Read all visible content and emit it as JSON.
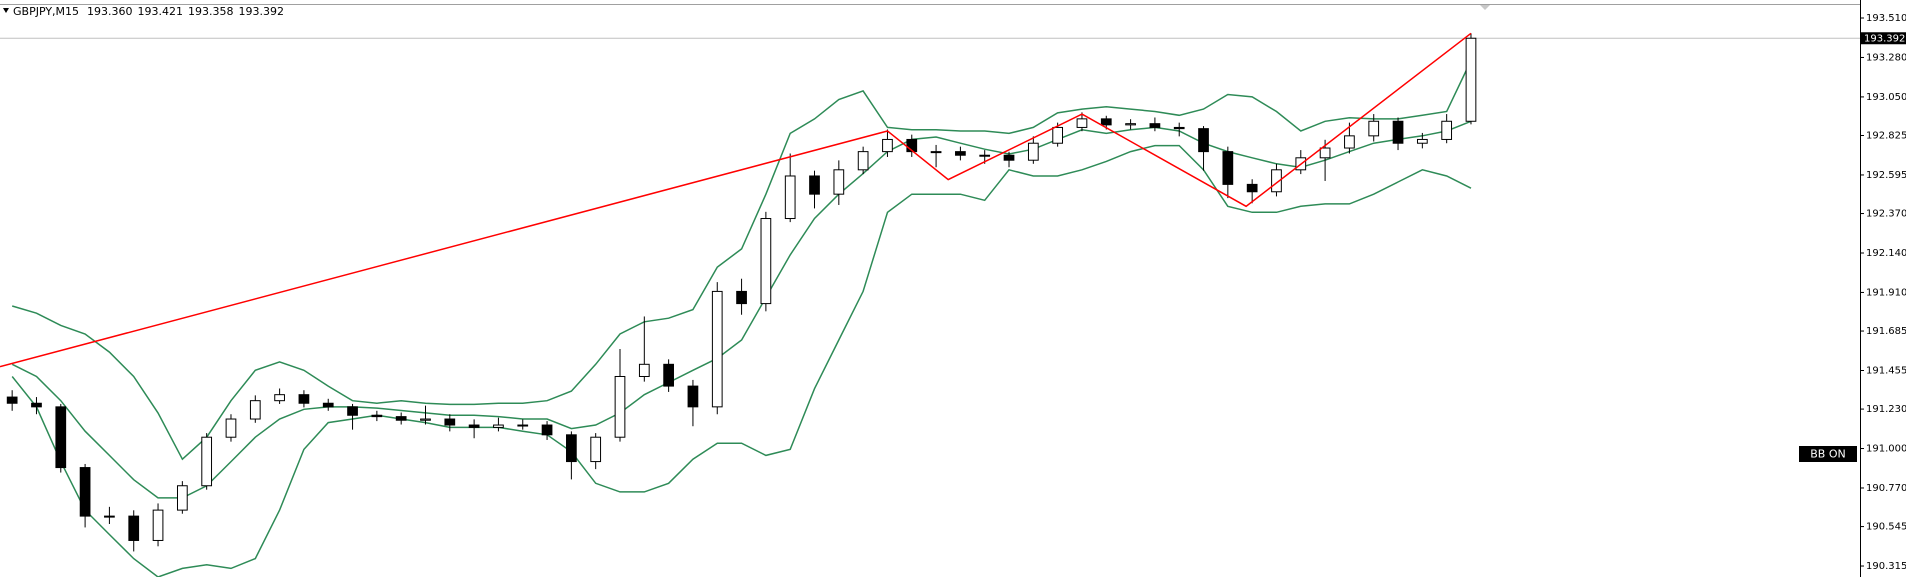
{
  "header": {
    "symbol": "GBPJPY,M15",
    "open": "193.360",
    "high": "193.421",
    "low": "193.358",
    "close": "193.392"
  },
  "indicator_label": "BB ON",
  "chart_data": {
    "type": "candlestick",
    "xlim": [
      -0.5,
      76
    ],
    "ylim": [
      190.251,
      193.615
    ],
    "yticks": [
      {
        "value": 193.51,
        "label": "193.510"
      },
      {
        "value": 193.28,
        "label": "193.280"
      },
      {
        "value": 193.05,
        "label": "193.050"
      },
      {
        "value": 192.825,
        "label": "192.825"
      },
      {
        "value": 192.595,
        "label": "192.595"
      },
      {
        "value": 192.37,
        "label": "192.370"
      },
      {
        "value": 192.14,
        "label": "192.140"
      },
      {
        "value": 191.91,
        "label": "191.910"
      },
      {
        "value": 191.685,
        "label": "191.685"
      },
      {
        "value": 191.455,
        "label": "191.455"
      },
      {
        "value": 191.23,
        "label": "191.230"
      },
      {
        "value": 191,
        "label": "191.000"
      },
      {
        "value": 190.77,
        "label": "190.770"
      },
      {
        "value": 190.545,
        "label": "190.545"
      },
      {
        "value": 190.315,
        "label": "190.315"
      }
    ],
    "last_price": {
      "value": 193.392,
      "label": "193.392"
    },
    "open": [
      191.3,
      191.264,
      191.243,
      190.889,
      190.606,
      190.606,
      190.464,
      190.641,
      190.783,
      191.066,
      191.172,
      191.279,
      191.314,
      191.264,
      191.243,
      191.194,
      191.186,
      191.165,
      191.172,
      191.137,
      191.123,
      191.137,
      191.137,
      191.08,
      190.924,
      191.066,
      191.42,
      191.491,
      191.364,
      191.243,
      191.916,
      191.845,
      192.341,
      192.589,
      192.483,
      192.625,
      192.731,
      192.802,
      192.731,
      192.731,
      192.71,
      192.71,
      192.681,
      192.78,
      192.872,
      192.922,
      192.887,
      192.894,
      192.872,
      192.865,
      192.731,
      192.54,
      192.497,
      192.625,
      192.695,
      192.752,
      192.823,
      192.908,
      192.78,
      192.802,
      192.908
    ],
    "high": [
      191.34,
      191.3,
      191.26,
      190.91,
      190.66,
      190.64,
      190.68,
      190.81,
      191.09,
      191.2,
      191.31,
      191.35,
      191.34,
      191.29,
      191.26,
      191.22,
      191.21,
      191.25,
      191.2,
      191.17,
      191.18,
      191.17,
      191.16,
      191.1,
      191.09,
      191.58,
      191.77,
      191.52,
      191.4,
      191.97,
      191.99,
      192.38,
      192.72,
      192.62,
      192.68,
      192.76,
      192.86,
      192.83,
      192.77,
      192.76,
      192.74,
      192.73,
      192.82,
      192.9,
      192.96,
      192.94,
      192.92,
      192.93,
      192.9,
      192.88,
      192.76,
      192.57,
      192.66,
      192.74,
      192.8,
      192.9,
      192.95,
      192.93,
      192.84,
      192.95,
      193.421
    ],
    "low": [
      191.22,
      191.2,
      190.86,
      190.54,
      190.56,
      190.4,
      190.43,
      190.62,
      190.76,
      191.04,
      191.15,
      191.26,
      191.24,
      191.22,
      191.11,
      191.16,
      191.14,
      191.14,
      191.1,
      191.06,
      191.1,
      191.11,
      191.05,
      190.82,
      190.88,
      191.04,
      191.39,
      191.33,
      191.13,
      191.2,
      191.78,
      191.8,
      192.32,
      192.4,
      192.42,
      192.6,
      192.7,
      192.7,
      192.64,
      192.68,
      192.66,
      192.64,
      192.66,
      192.76,
      192.85,
      192.86,
      192.86,
      192.85,
      192.82,
      192.62,
      192.46,
      192.43,
      192.47,
      192.6,
      192.56,
      192.72,
      192.79,
      192.74,
      192.75,
      192.78,
      192.89
    ],
    "close": [
      191.264,
      191.243,
      190.889,
      190.606,
      190.606,
      190.464,
      190.641,
      190.783,
      191.066,
      191.172,
      191.279,
      191.314,
      191.264,
      191.243,
      191.194,
      191.186,
      191.165,
      191.172,
      191.137,
      191.123,
      191.137,
      191.137,
      191.08,
      190.924,
      191.066,
      191.42,
      191.491,
      191.364,
      191.243,
      191.916,
      191.845,
      192.341,
      192.589,
      192.483,
      192.625,
      192.731,
      192.802,
      192.731,
      192.731,
      192.71,
      192.71,
      192.681,
      192.78,
      192.872,
      192.922,
      192.887,
      192.894,
      192.872,
      192.865,
      192.731,
      192.54,
      192.497,
      192.625,
      192.695,
      192.752,
      192.823,
      192.908,
      192.78,
      192.802,
      192.908,
      193.392
    ],
    "bands": {
      "color": "#2e8b57",
      "upper": [
        191.831,
        191.789,
        191.718,
        191.668,
        191.562,
        191.42,
        191.208,
        190.938,
        191.066,
        191.279,
        191.456,
        191.505,
        191.456,
        191.364,
        191.279,
        191.264,
        191.279,
        191.264,
        191.257,
        191.257,
        191.264,
        191.264,
        191.279,
        191.335,
        191.491,
        191.668,
        191.739,
        191.76,
        191.81,
        192.058,
        192.164,
        192.483,
        192.837,
        192.922,
        193.035,
        193.085,
        192.872,
        192.858,
        192.858,
        192.851,
        192.851,
        192.837,
        192.872,
        192.957,
        192.979,
        192.993,
        192.979,
        192.965,
        192.943,
        192.979,
        193.064,
        193.05,
        192.965,
        192.851,
        192.908,
        192.929,
        192.922,
        192.922,
        192.943,
        192.965,
        193.262
      ],
      "middle": [
        191.491,
        191.42,
        191.279,
        191.101,
        190.96,
        190.818,
        190.712,
        190.712,
        190.783,
        190.924,
        191.066,
        191.172,
        191.229,
        191.243,
        191.243,
        191.236,
        191.222,
        191.208,
        191.194,
        191.194,
        191.186,
        191.172,
        191.172,
        191.116,
        191.137,
        191.208,
        191.314,
        191.385,
        191.456,
        191.526,
        191.633,
        191.881,
        192.129,
        192.341,
        192.483,
        192.603,
        192.731,
        192.802,
        192.816,
        192.78,
        192.745,
        192.717,
        192.745,
        192.802,
        192.858,
        192.837,
        192.858,
        192.872,
        192.851,
        192.78,
        192.731,
        192.695,
        192.66,
        192.639,
        192.681,
        192.731,
        192.78,
        192.802,
        192.823,
        192.851,
        192.908
      ],
      "lower": [
        191.42,
        191.243,
        190.924,
        190.641,
        190.499,
        190.358,
        190.251,
        190.301,
        190.322,
        190.301,
        190.358,
        190.641,
        190.995,
        191.151,
        191.172,
        191.194,
        191.172,
        191.151,
        191.123,
        191.123,
        191.123,
        191.101,
        191.08,
        190.981,
        190.797,
        190.747,
        190.747,
        190.797,
        190.938,
        191.031,
        191.031,
        190.96,
        190.995,
        191.349,
        191.633,
        191.916,
        192.377,
        192.483,
        192.483,
        192.483,
        192.447,
        192.625,
        192.589,
        192.589,
        192.625,
        192.674,
        192.731,
        192.766,
        192.766,
        192.625,
        192.412,
        192.377,
        192.377,
        192.412,
        192.426,
        192.426,
        192.483,
        192.554,
        192.625,
        192.589,
        192.518
      ]
    },
    "zigzag": {
      "color": "#ff0000",
      "x": [
        -0.5,
        36,
        38.5,
        44,
        50.75,
        60
      ],
      "values": [
        191.477,
        192.851,
        192.568,
        192.95,
        192.412,
        193.421
      ]
    }
  }
}
